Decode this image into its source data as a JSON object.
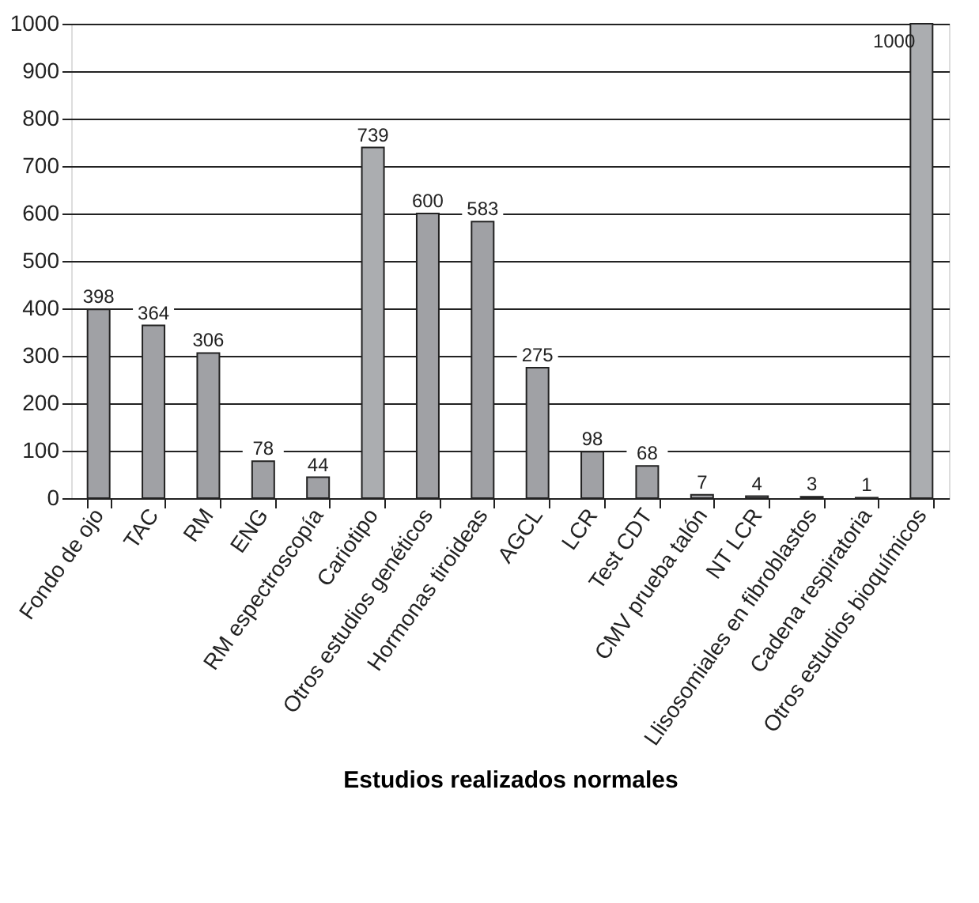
{
  "chart_data": {
    "type": "bar",
    "xlabel": "Estudios realizados normales",
    "categories": [
      "Fondo de ojo",
      "TAC",
      "RM",
      "ENG",
      "RM espectroscopía",
      "Cariotipo",
      "Otros estudios genéticos",
      "Hormonas tiroideas",
      "AGCL",
      "LCR",
      "Test CDT",
      "CMV prueba talón",
      "NT LCR",
      "Llisosomiales en fibroblastos",
      "Cadena respiratoria",
      "Otros estudios bioquímicos"
    ],
    "values": [
      398,
      364,
      306,
      78,
      44,
      739,
      600,
      583,
      275,
      98,
      68,
      7,
      4,
      3,
      1,
      1000
    ],
    "colors": [
      "#a0a1a5",
      "#a0a1a5",
      "#a0a1a5",
      "#a0a1a5",
      "#a0a1a5",
      "#abadb0",
      "#a0a1a5",
      "#a0a1a5",
      "#a0a1a5",
      "#a0a1a5",
      "#a0a1a5",
      "#a0a1a5",
      "#a0a1a5",
      "#a0a1a5",
      "#a0a1a5",
      "#abadb0"
    ],
    "ylim": [
      0,
      1000
    ],
    "yticks": [
      0,
      100,
      200,
      300,
      400,
      500,
      600,
      700,
      800,
      900,
      1000
    ],
    "grid": "y",
    "data_labels": true
  }
}
